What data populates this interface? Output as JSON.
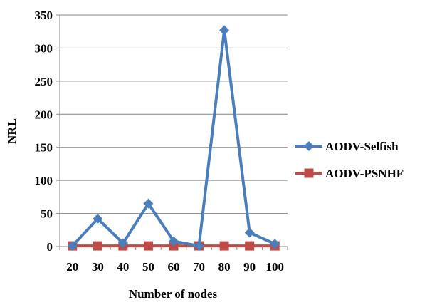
{
  "chart_data": {
    "type": "line",
    "xlabel": "Number of nodes",
    "ylabel": "NRL",
    "categories": [
      "20",
      "30",
      "40",
      "50",
      "60",
      "70",
      "80",
      "90",
      "100"
    ],
    "ylim": [
      0,
      350
    ],
    "yticks": [
      0,
      50,
      100,
      150,
      200,
      250,
      300,
      350
    ],
    "grid": "horizontal",
    "legend_position": "right",
    "series": [
      {
        "name": "AODV-Selfish",
        "color": "#4a7ebb",
        "marker": "diamond",
        "values": [
          1,
          42,
          5,
          65,
          8,
          1,
          327,
          21,
          4
        ]
      },
      {
        "name": "AODV-PSNHF",
        "color": "#be4b48",
        "marker": "square",
        "values": [
          1,
          1,
          1,
          1,
          1,
          1,
          1,
          1,
          1
        ]
      }
    ]
  }
}
